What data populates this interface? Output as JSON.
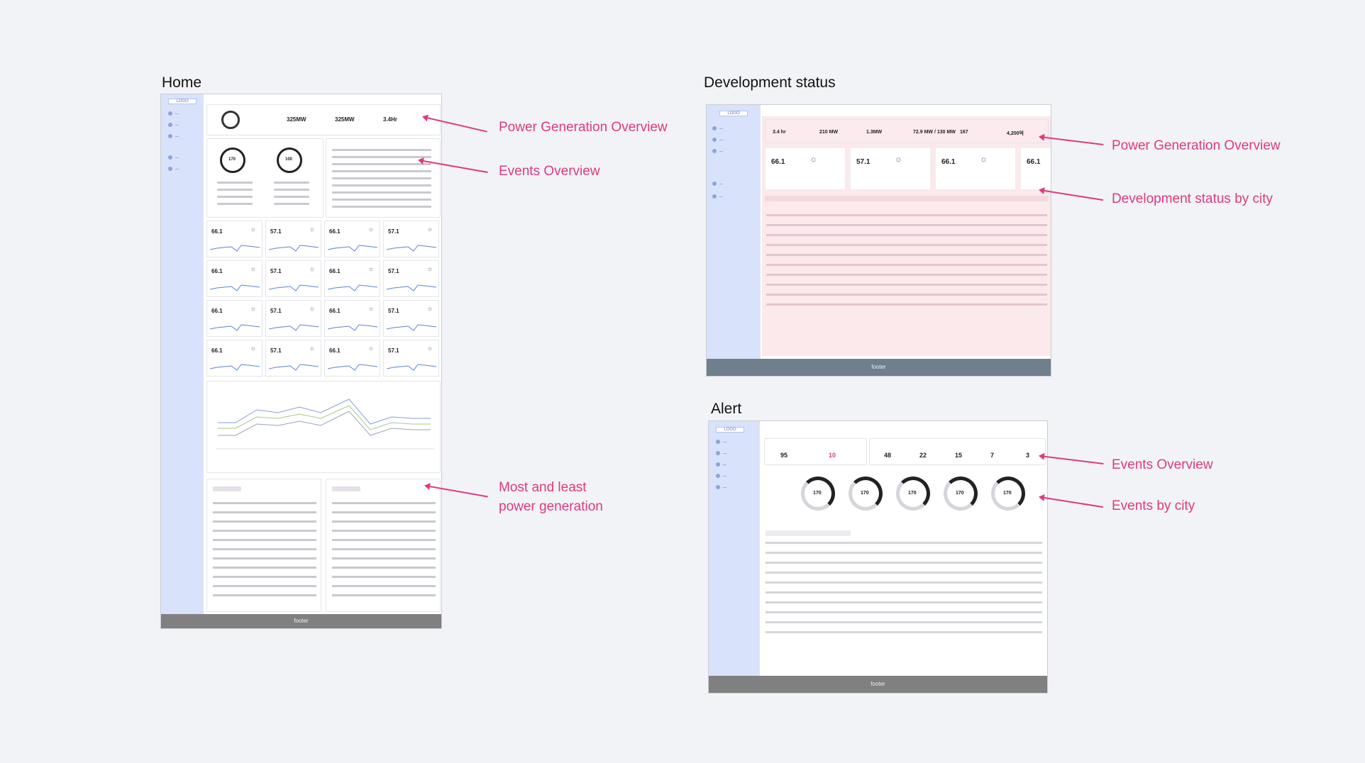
{
  "sections": {
    "home_title": "Home",
    "dev_title": "Development status",
    "alert_title": "Alert"
  },
  "annotations": {
    "home_power": "Power Generation Overview",
    "home_events": "Events Overview",
    "home_most_least_1": "Most and least",
    "home_most_least_2": "power generation",
    "dev_power": "Power Generation Overview",
    "dev_city": "Development status by city",
    "alert_events": "Events Overview",
    "alert_city": "Events by city"
  },
  "mock": {
    "logo": "LOGO",
    "footer": "footer",
    "home_kpi_1": "325MW",
    "home_kpi_2": "325MW",
    "home_kpi_3": "3.4Hr",
    "home_ring_1": "170",
    "home_ring_2": "100",
    "city_value_a": "66.1",
    "city_value_b": "57.1",
    "dev_kpis": [
      "3.4 hr",
      "210 MW",
      "1.3MW",
      "72.9 MW / 130 MW",
      "167",
      "4,200억"
    ],
    "dev_city_values": [
      "66.1",
      "57.1",
      "66.1",
      "66.1"
    ],
    "alert_kpis": [
      "95",
      "10",
      "48",
      "22",
      "15",
      "7",
      "3"
    ],
    "alert_ring_value": "170"
  },
  "colors": {
    "accent": "#e0397f",
    "sidebar": "#d8e3fb",
    "footer": "#808080"
  }
}
